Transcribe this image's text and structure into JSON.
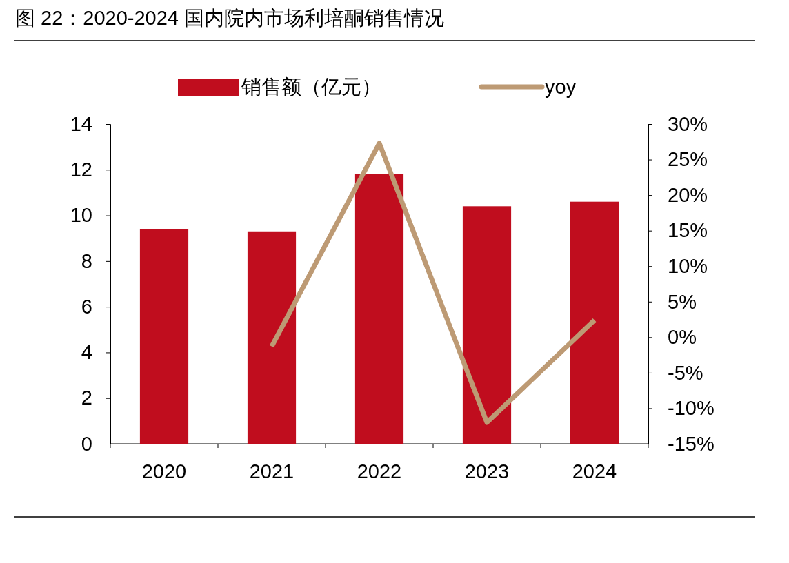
{
  "chart_data": {
    "type": "bar",
    "title": "图 22：2020-2024 国内院内市场利培酮销售情况",
    "categories": [
      "2020",
      "2021",
      "2022",
      "2023",
      "2024"
    ],
    "series": [
      {
        "name": "销售额（亿元）",
        "color": "#c00d1e",
        "values": [
          9.4,
          9.3,
          11.8,
          10.4,
          10.6
        ]
      },
      {
        "name": "yoy",
        "type": "line",
        "axis": "y2",
        "color": "#bd9a74",
        "values": [
          null,
          -1.3,
          27.3,
          -12,
          2.4
        ]
      }
    ],
    "ylim": [
      0,
      14
    ],
    "yticks": [
      0,
      2,
      4,
      6,
      8,
      10,
      12,
      14
    ],
    "y2lim": [
      -15,
      30
    ],
    "y2ticks": [
      {
        "value": -15,
        "label": "-15%"
      },
      {
        "value": -10,
        "label": "-10%"
      },
      {
        "value": -5,
        "label": "-5%"
      },
      {
        "value": 0,
        "label": "0%"
      },
      {
        "value": 5,
        "label": "5%"
      },
      {
        "value": 10,
        "label": "10%"
      },
      {
        "value": 15,
        "label": "15%"
      },
      {
        "value": 20,
        "label": "20%"
      },
      {
        "value": 25,
        "label": "25%"
      },
      {
        "value": 30,
        "label": "30%"
      }
    ],
    "legend": "top",
    "grid": false,
    "marker": "none"
  }
}
